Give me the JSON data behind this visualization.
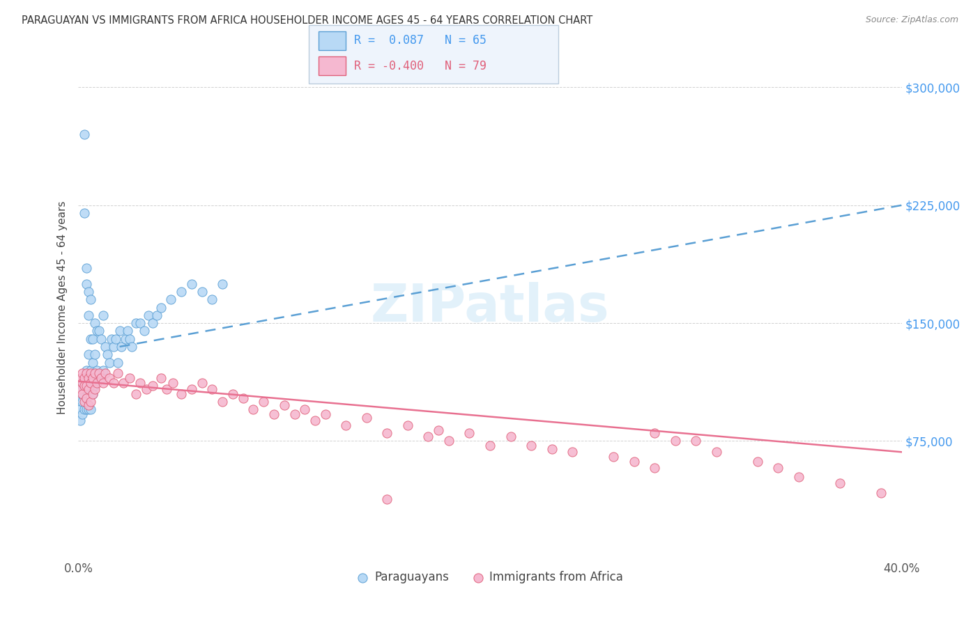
{
  "title": "PARAGUAYAN VS IMMIGRANTS FROM AFRICA HOUSEHOLDER INCOME AGES 45 - 64 YEARS CORRELATION CHART",
  "source": "Source: ZipAtlas.com",
  "ylabel": "Householder Income Ages 45 - 64 years",
  "watermark": "ZIPatlas",
  "blue_R": 0.087,
  "blue_N": 65,
  "pink_R": -0.4,
  "pink_N": 79,
  "blue_color": "#b8d9f5",
  "pink_color": "#f5b8d0",
  "blue_edge_color": "#5a9fd4",
  "pink_edge_color": "#e0607a",
  "blue_line_color": "#5a9fd4",
  "pink_line_color": "#e87090",
  "ytick_color": "#4499ee",
  "xlim": [
    0.0,
    0.4
  ],
  "ylim": [
    0,
    320000
  ],
  "yticks": [
    75000,
    150000,
    225000,
    300000
  ],
  "ytick_labels": [
    "$75,000",
    "$150,000",
    "$225,000",
    "$300,000"
  ],
  "blue_trend": [
    0.02,
    135000,
    0.4,
    225000
  ],
  "pink_trend": [
    0.0,
    113000,
    0.4,
    68000
  ],
  "blue_scatter_x": [
    0.001,
    0.001,
    0.001,
    0.002,
    0.002,
    0.002,
    0.002,
    0.003,
    0.003,
    0.003,
    0.003,
    0.003,
    0.004,
    0.004,
    0.004,
    0.004,
    0.005,
    0.005,
    0.005,
    0.005,
    0.005,
    0.006,
    0.006,
    0.006,
    0.006,
    0.007,
    0.007,
    0.007,
    0.008,
    0.008,
    0.008,
    0.009,
    0.009,
    0.01,
    0.01,
    0.011,
    0.011,
    0.012,
    0.012,
    0.013,
    0.014,
    0.015,
    0.016,
    0.017,
    0.018,
    0.019,
    0.02,
    0.021,
    0.023,
    0.024,
    0.025,
    0.026,
    0.028,
    0.03,
    0.032,
    0.034,
    0.036,
    0.038,
    0.04,
    0.045,
    0.05,
    0.055,
    0.06,
    0.065,
    0.07
  ],
  "blue_scatter_y": [
    100000,
    95000,
    88000,
    110000,
    105000,
    100000,
    92000,
    270000,
    220000,
    115000,
    108000,
    95000,
    185000,
    175000,
    120000,
    95000,
    170000,
    155000,
    130000,
    118000,
    95000,
    165000,
    140000,
    120000,
    95000,
    140000,
    125000,
    105000,
    150000,
    130000,
    110000,
    145000,
    120000,
    145000,
    115000,
    140000,
    115000,
    155000,
    120000,
    135000,
    130000,
    125000,
    140000,
    135000,
    140000,
    125000,
    145000,
    135000,
    140000,
    145000,
    140000,
    135000,
    150000,
    150000,
    145000,
    155000,
    150000,
    155000,
    160000,
    165000,
    170000,
    175000,
    170000,
    165000,
    175000
  ],
  "pink_scatter_x": [
    0.001,
    0.001,
    0.002,
    0.002,
    0.002,
    0.003,
    0.003,
    0.003,
    0.004,
    0.004,
    0.004,
    0.005,
    0.005,
    0.005,
    0.006,
    0.006,
    0.006,
    0.007,
    0.007,
    0.008,
    0.008,
    0.009,
    0.01,
    0.011,
    0.012,
    0.013,
    0.015,
    0.017,
    0.019,
    0.022,
    0.025,
    0.028,
    0.03,
    0.033,
    0.036,
    0.04,
    0.043,
    0.046,
    0.05,
    0.055,
    0.06,
    0.065,
    0.07,
    0.075,
    0.08,
    0.085,
    0.09,
    0.095,
    0.1,
    0.105,
    0.11,
    0.115,
    0.12,
    0.13,
    0.14,
    0.15,
    0.16,
    0.17,
    0.175,
    0.18,
    0.19,
    0.2,
    0.21,
    0.22,
    0.23,
    0.24,
    0.26,
    0.27,
    0.28,
    0.3,
    0.31,
    0.33,
    0.34,
    0.35,
    0.37,
    0.28,
    0.29,
    0.15,
    0.39
  ],
  "pink_scatter_y": [
    115000,
    108000,
    118000,
    112000,
    105000,
    115000,
    110000,
    100000,
    118000,
    110000,
    102000,
    115000,
    108000,
    98000,
    118000,
    112000,
    100000,
    115000,
    105000,
    118000,
    108000,
    112000,
    118000,
    115000,
    112000,
    118000,
    115000,
    112000,
    118000,
    112000,
    115000,
    105000,
    112000,
    108000,
    110000,
    115000,
    108000,
    112000,
    105000,
    108000,
    112000,
    108000,
    100000,
    105000,
    102000,
    95000,
    100000,
    92000,
    98000,
    92000,
    95000,
    88000,
    92000,
    85000,
    90000,
    80000,
    85000,
    78000,
    82000,
    75000,
    80000,
    72000,
    78000,
    72000,
    70000,
    68000,
    65000,
    62000,
    58000,
    75000,
    68000,
    62000,
    58000,
    52000,
    48000,
    80000,
    75000,
    38000,
    42000
  ]
}
